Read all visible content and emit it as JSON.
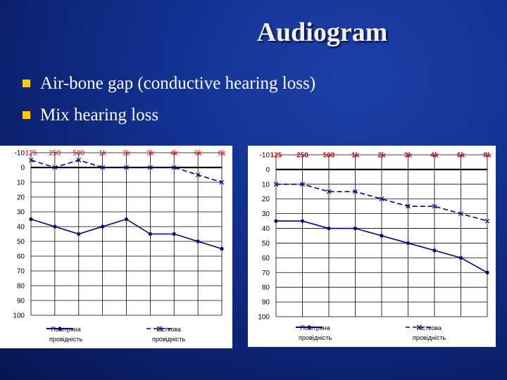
{
  "slide": {
    "title": "Audiogram",
    "bullets": [
      "Air-bone gap (conductive hearing loss)",
      "Mix hearing loss"
    ]
  },
  "colors": {
    "background": "#12308f",
    "title": "#f2f2f2",
    "bullet_marker": "#ffcc00",
    "frequency_labels": "#cc0000",
    "air_series": "#000080",
    "bone_series": "#000080"
  },
  "legend": {
    "air": {
      "line1": "Повітряна",
      "line2": "провідність"
    },
    "bone": {
      "line1": "Кісткова",
      "line2": "провідність"
    }
  },
  "chart_data": [
    {
      "type": "line",
      "title": "",
      "categories": [
        "125",
        "250",
        "500",
        "1k",
        "2k",
        "3k",
        "4k",
        "6k",
        "8k"
      ],
      "y_ticks": [
        -10,
        0,
        10,
        20,
        30,
        40,
        50,
        60,
        70,
        80,
        90,
        100
      ],
      "ylim": [
        -10,
        100
      ],
      "y_inverted": true,
      "grid": true,
      "legend_position": "bottom",
      "series": [
        {
          "name": "Повітряна провідність",
          "marker": "dot",
          "style": "solid",
          "values": [
            35,
            40,
            45,
            40,
            35,
            45,
            45,
            50,
            55
          ]
        },
        {
          "name": "Кісткова провідність",
          "marker": "x",
          "style": "dashed",
          "values": [
            -5,
            0,
            -5,
            0,
            0,
            0,
            0,
            5,
            10
          ]
        }
      ]
    },
    {
      "type": "line",
      "title": "",
      "categories": [
        "125",
        "250",
        "500",
        "1k",
        "2k",
        "3k",
        "4k",
        "6k",
        "8k"
      ],
      "y_ticks": [
        -10,
        0,
        10,
        20,
        30,
        40,
        50,
        60,
        70,
        80,
        90,
        100
      ],
      "ylim": [
        -10,
        100
      ],
      "y_inverted": true,
      "grid": true,
      "legend_position": "bottom",
      "series": [
        {
          "name": "Повітряна провідність",
          "marker": "dot",
          "style": "solid",
          "values": [
            35,
            35,
            40,
            40,
            45,
            50,
            55,
            60,
            70
          ]
        },
        {
          "name": "Кісткова провідність",
          "marker": "x",
          "style": "dashed",
          "values": [
            10,
            10,
            15,
            15,
            20,
            25,
            25,
            30,
            35
          ]
        }
      ]
    }
  ]
}
